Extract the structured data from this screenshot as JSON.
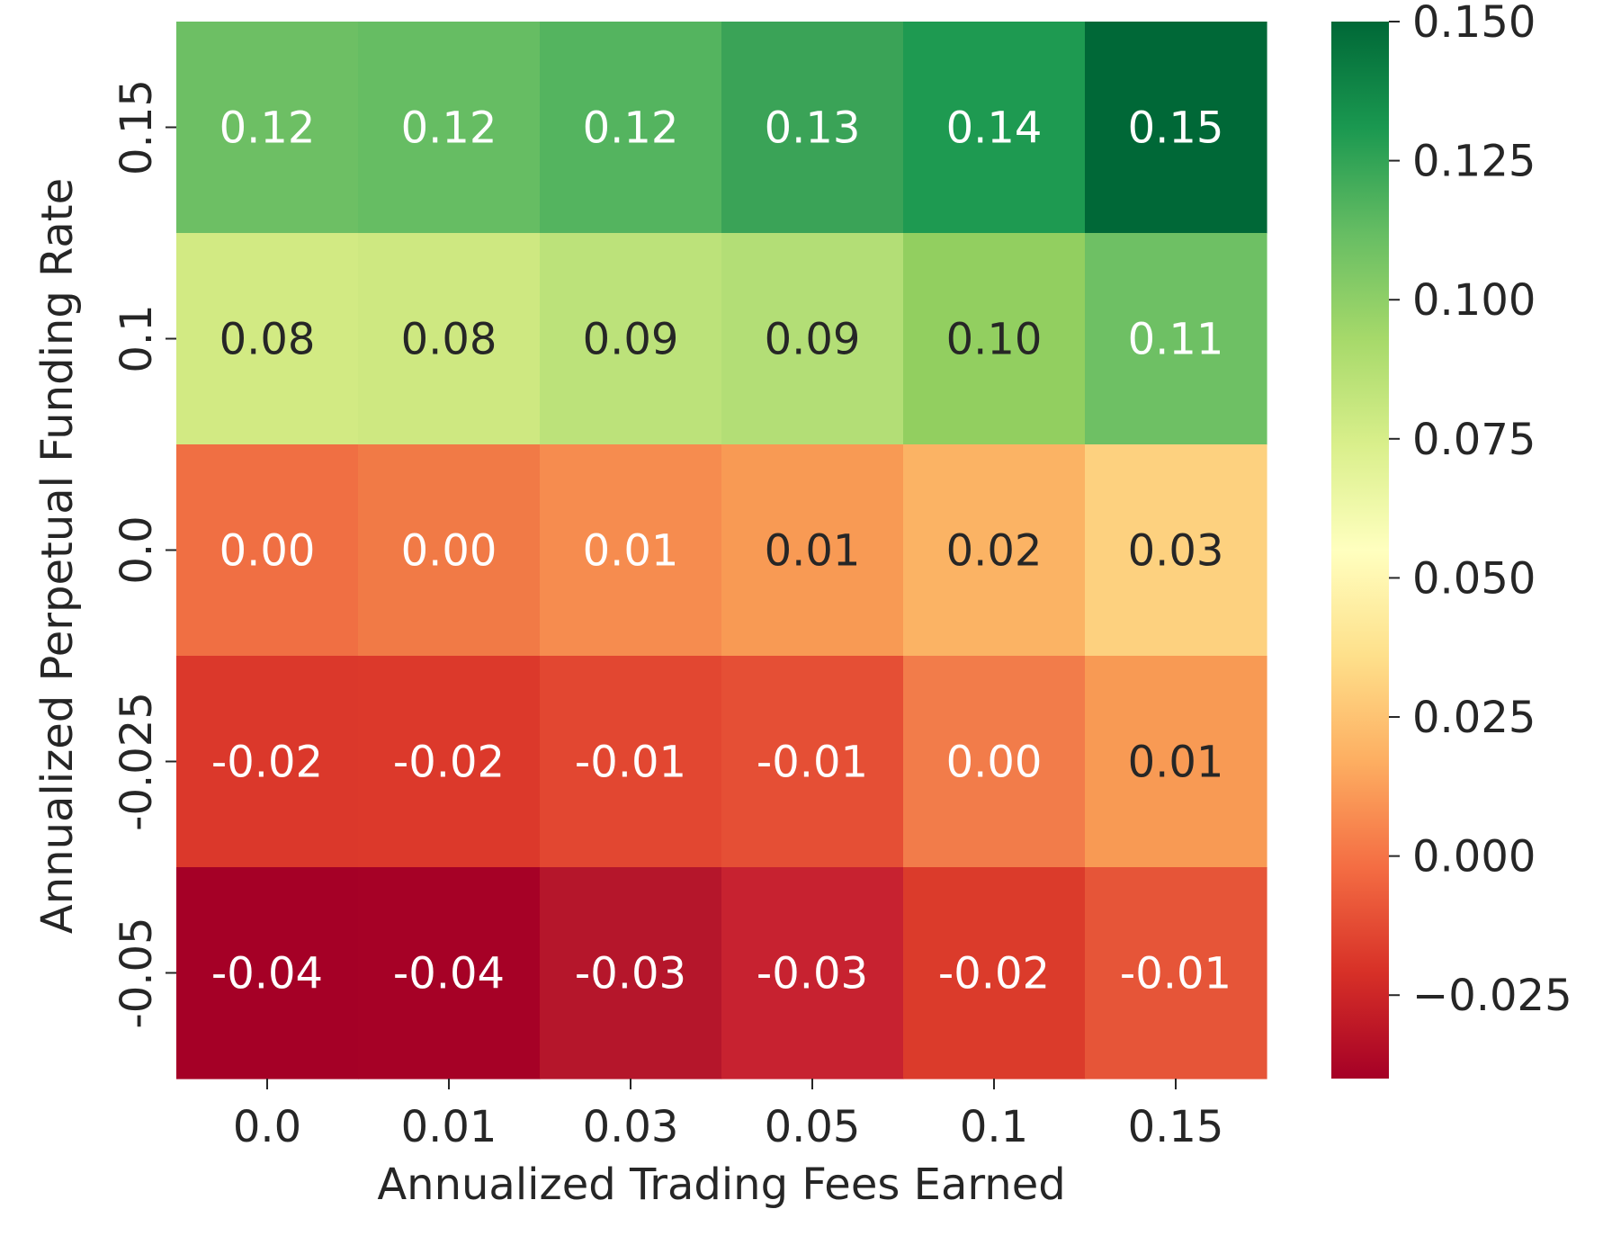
{
  "chart_data": {
    "type": "heatmap",
    "title": "",
    "xlabel": "Annualized Trading Fees Earned",
    "ylabel": "Annualized Perpetual Funding Rate",
    "x_categories": [
      "0.0",
      "0.01",
      "0.03",
      "0.05",
      "0.1",
      "0.15"
    ],
    "y_categories": [
      "0.15",
      "0.1",
      "0.0",
      "-0.025",
      "-0.05"
    ],
    "values": [
      [
        0.12,
        0.12,
        0.12,
        0.13,
        0.14,
        0.15
      ],
      [
        0.08,
        0.08,
        0.09,
        0.09,
        0.1,
        0.11
      ],
      [
        0.0,
        0.0,
        0.01,
        0.01,
        0.02,
        0.03
      ],
      [
        -0.02,
        -0.02,
        -0.01,
        -0.01,
        0.0,
        0.01
      ],
      [
        -0.04,
        -0.04,
        -0.03,
        -0.03,
        -0.02,
        -0.01
      ]
    ],
    "cell_labels": [
      [
        "0.12",
        "0.12",
        "0.12",
        "0.13",
        "0.14",
        "0.15"
      ],
      [
        "0.08",
        "0.08",
        "0.09",
        "0.09",
        "0.10",
        "0.11"
      ],
      [
        "0.00",
        "0.00",
        "0.01",
        "0.01",
        "0.02",
        "0.03"
      ],
      [
        "-0.02",
        "-0.02",
        "-0.01",
        "-0.01",
        "0.00",
        "0.01"
      ],
      [
        "-0.04",
        "-0.04",
        "-0.03",
        "-0.03",
        "-0.02",
        "-0.01"
      ]
    ],
    "cell_colors": [
      [
        "#6dbf64",
        "#66bd63",
        "#54b45f",
        "#3aa357",
        "#1e9a51",
        "#006837"
      ],
      [
        "#d2ea83",
        "#cee881",
        "#bce27a",
        "#b3de76",
        "#92cf60",
        "#6ec064"
      ],
      [
        "#f06f43",
        "#f17a46",
        "#f68c4f",
        "#f89a54",
        "#fbb364",
        "#fdd17f"
      ],
      [
        "#db382b",
        "#dc392b",
        "#e24731",
        "#e54f35",
        "#f27c4a",
        "#f89a54"
      ],
      [
        "#a50026",
        "#a60126",
        "#b5162b",
        "#c72230",
        "#db3b2b",
        "#e65538"
      ]
    ],
    "annotation_text_colors": [
      [
        "#ffffff",
        "#ffffff",
        "#ffffff",
        "#ffffff",
        "#ffffff",
        "#ffffff"
      ],
      [
        "#262626",
        "#262626",
        "#262626",
        "#262626",
        "#262626",
        "#ffffff"
      ],
      [
        "#ffffff",
        "#ffffff",
        "#ffffff",
        "#262626",
        "#262626",
        "#262626"
      ],
      [
        "#ffffff",
        "#ffffff",
        "#ffffff",
        "#ffffff",
        "#ffffff",
        "#262626"
      ],
      [
        "#ffffff",
        "#ffffff",
        "#ffffff",
        "#ffffff",
        "#ffffff",
        "#ffffff"
      ]
    ],
    "colorbar": {
      "colormap": "RdYlGn",
      "range": [
        -0.04,
        0.15
      ],
      "ticks": [
        0.15,
        0.125,
        0.1,
        0.075,
        0.05,
        0.025,
        0.0,
        -0.025
      ],
      "tick_labels": [
        "0.150",
        "0.125",
        "0.100",
        "0.075",
        "0.050",
        "0.025",
        "0.000",
        "−0.025"
      ],
      "gradient_stops": [
        "#a50026",
        "#d73027",
        "#f46d43",
        "#fdae61",
        "#fee08b",
        "#ffffbf",
        "#d9ef8b",
        "#a6d96a",
        "#66bd63",
        "#1a9850",
        "#006837"
      ]
    },
    "grid": false,
    "legend": "none"
  }
}
